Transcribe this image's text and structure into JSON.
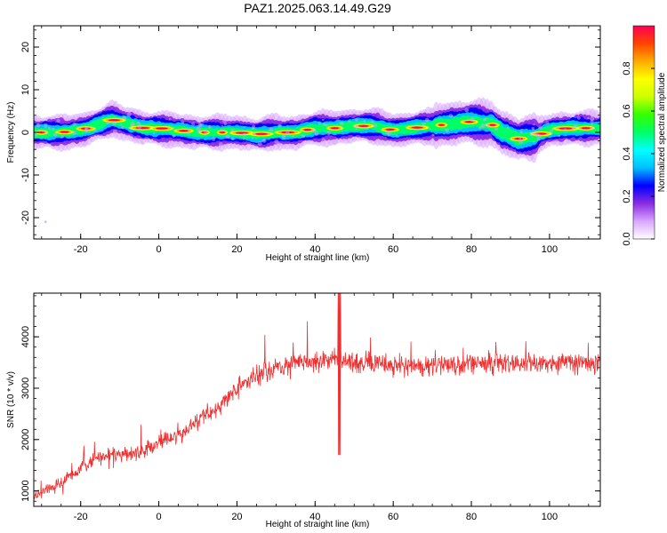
{
  "title": "PAZ1.2025.063.14.49.G29",
  "chart_data": [
    {
      "type": "heatmap",
      "xlabel": "Height of straight line (km)",
      "ylabel": "Frequency (Hz)",
      "xlim": [
        -32,
        113
      ],
      "ylim": [
        -25,
        25
      ],
      "xticks": [
        "-20",
        "0",
        "20",
        "40",
        "60",
        "80",
        "100"
      ],
      "yticks": [
        "-20",
        "-10",
        "0",
        "10",
        "20"
      ],
      "ridge": {
        "x": [
          -30,
          -25,
          -20,
          -15,
          -12,
          -8,
          -4,
          0,
          5,
          10,
          15,
          20,
          25,
          30,
          35,
          40,
          45,
          50,
          55,
          60,
          65,
          70,
          75,
          80,
          85,
          88,
          92,
          96,
          100,
          105,
          110,
          113
        ],
        "frequency": [
          0,
          0,
          0.5,
          2,
          3,
          2,
          1,
          1,
          0.5,
          0,
          0,
          0,
          -0.5,
          0,
          0,
          1,
          1,
          1.5,
          1.5,
          0.5,
          1,
          1.5,
          2,
          2.5,
          2,
          0,
          -1.5,
          -1,
          0.5,
          1,
          1,
          1
        ]
      },
      "colorbar": {
        "label": "Normalized spectral amplitude",
        "range": [
          0,
          1
        ],
        "ticks": [
          "0.0",
          "0.2",
          "0.4",
          "0.6",
          "0.8"
        ],
        "colors": [
          "#ffffff",
          "#d8a6ff",
          "#8a2be2",
          "#0000ff",
          "#00bfff",
          "#00ffff",
          "#00ff66",
          "#33ff00",
          "#ccff00",
          "#ffff00",
          "#ffaa00",
          "#ff4400",
          "#ff0055"
        ]
      }
    },
    {
      "type": "line",
      "xlabel": "Height of straight line (km)",
      "ylabel": "SNR (10 * v/v)",
      "xlim": [
        -32,
        113
      ],
      "ylim": [
        700,
        4850
      ],
      "xticks": [
        "-20",
        "0",
        "20",
        "40",
        "60",
        "80",
        "100"
      ],
      "yticks": [
        "1000",
        "2000",
        "3000",
        "4000"
      ],
      "series_color": "#f03030",
      "trend": {
        "x": [
          -32,
          -25,
          -20,
          -15,
          -10,
          -5,
          0,
          5,
          10,
          15,
          20,
          25,
          30,
          35,
          40,
          45,
          50,
          60,
          70,
          80,
          90,
          100,
          110,
          113
        ],
        "y": [
          900,
          1150,
          1450,
          1650,
          1700,
          1750,
          1950,
          2050,
          2350,
          2600,
          3000,
          3250,
          3400,
          3500,
          3550,
          3550,
          3500,
          3450,
          3450,
          3450,
          3500,
          3500,
          3500,
          3500
        ]
      },
      "spike": {
        "x": 46.2,
        "max": 4850,
        "min": 1700
      }
    }
  ]
}
